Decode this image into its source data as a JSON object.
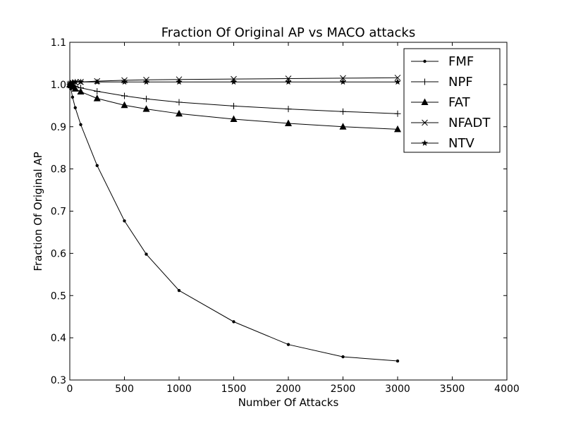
{
  "chart_data": {
    "type": "line",
    "title": "Fraction Of Original AP vs MACO attacks",
    "xlabel": "Number Of Attacks",
    "ylabel": "Fraction Of Original AP",
    "xlim": [
      0,
      4000
    ],
    "ylim": [
      0.3,
      1.1
    ],
    "xticks": [
      "0",
      "500",
      "1000",
      "1500",
      "2000",
      "2500",
      "3000",
      "3500",
      "4000"
    ],
    "yticks": [
      "0.3",
      "0.4",
      "0.5",
      "0.6",
      "0.7",
      "0.8",
      "0.9",
      "1.0",
      "1.1"
    ],
    "grid": false,
    "legend_position": "top-right",
    "series": [
      {
        "name": "FMF",
        "marker": "dot",
        "color": "#000000",
        "x": [
          0,
          10,
          25,
          50,
          100,
          250,
          500,
          700,
          1000,
          1500,
          2000,
          2500,
          3000
        ],
        "y": [
          1.0,
          0.99,
          0.97,
          0.945,
          0.905,
          0.808,
          0.677,
          0.598,
          0.512,
          0.438,
          0.384,
          0.355,
          0.345
        ]
      },
      {
        "name": "NPF",
        "marker": "plus",
        "color": "#000000",
        "x": [
          0,
          10,
          25,
          50,
          100,
          250,
          500,
          700,
          1000,
          1500,
          2000,
          2500,
          3000
        ],
        "y": [
          1.0,
          0.999,
          0.998,
          0.996,
          0.992,
          0.984,
          0.973,
          0.966,
          0.958,
          0.949,
          0.942,
          0.936,
          0.931
        ]
      },
      {
        "name": "FAT",
        "marker": "triangle",
        "color": "#000000",
        "x": [
          0,
          10,
          25,
          50,
          100,
          250,
          500,
          700,
          1000,
          1500,
          2000,
          2500,
          3000
        ],
        "y": [
          1.0,
          0.998,
          0.995,
          0.99,
          0.983,
          0.967,
          0.951,
          0.942,
          0.931,
          0.918,
          0.908,
          0.9,
          0.894
        ]
      },
      {
        "name": "NFADT",
        "marker": "x",
        "color": "#000000",
        "x": [
          0,
          10,
          25,
          50,
          100,
          250,
          500,
          700,
          1000,
          1500,
          2000,
          2500,
          3000
        ],
        "y": [
          1.0,
          1.002,
          1.004,
          1.005,
          1.006,
          1.008,
          1.01,
          1.011,
          1.012,
          1.013,
          1.014,
          1.015,
          1.016
        ]
      },
      {
        "name": "NTV",
        "marker": "star",
        "color": "#000000",
        "x": [
          0,
          10,
          25,
          50,
          100,
          250,
          500,
          700,
          1000,
          1500,
          2000,
          2500,
          3000
        ],
        "y": [
          1.0,
          1.003,
          1.005,
          1.006,
          1.006,
          1.006,
          1.006,
          1.006,
          1.006,
          1.006,
          1.006,
          1.006,
          1.006
        ]
      }
    ]
  }
}
